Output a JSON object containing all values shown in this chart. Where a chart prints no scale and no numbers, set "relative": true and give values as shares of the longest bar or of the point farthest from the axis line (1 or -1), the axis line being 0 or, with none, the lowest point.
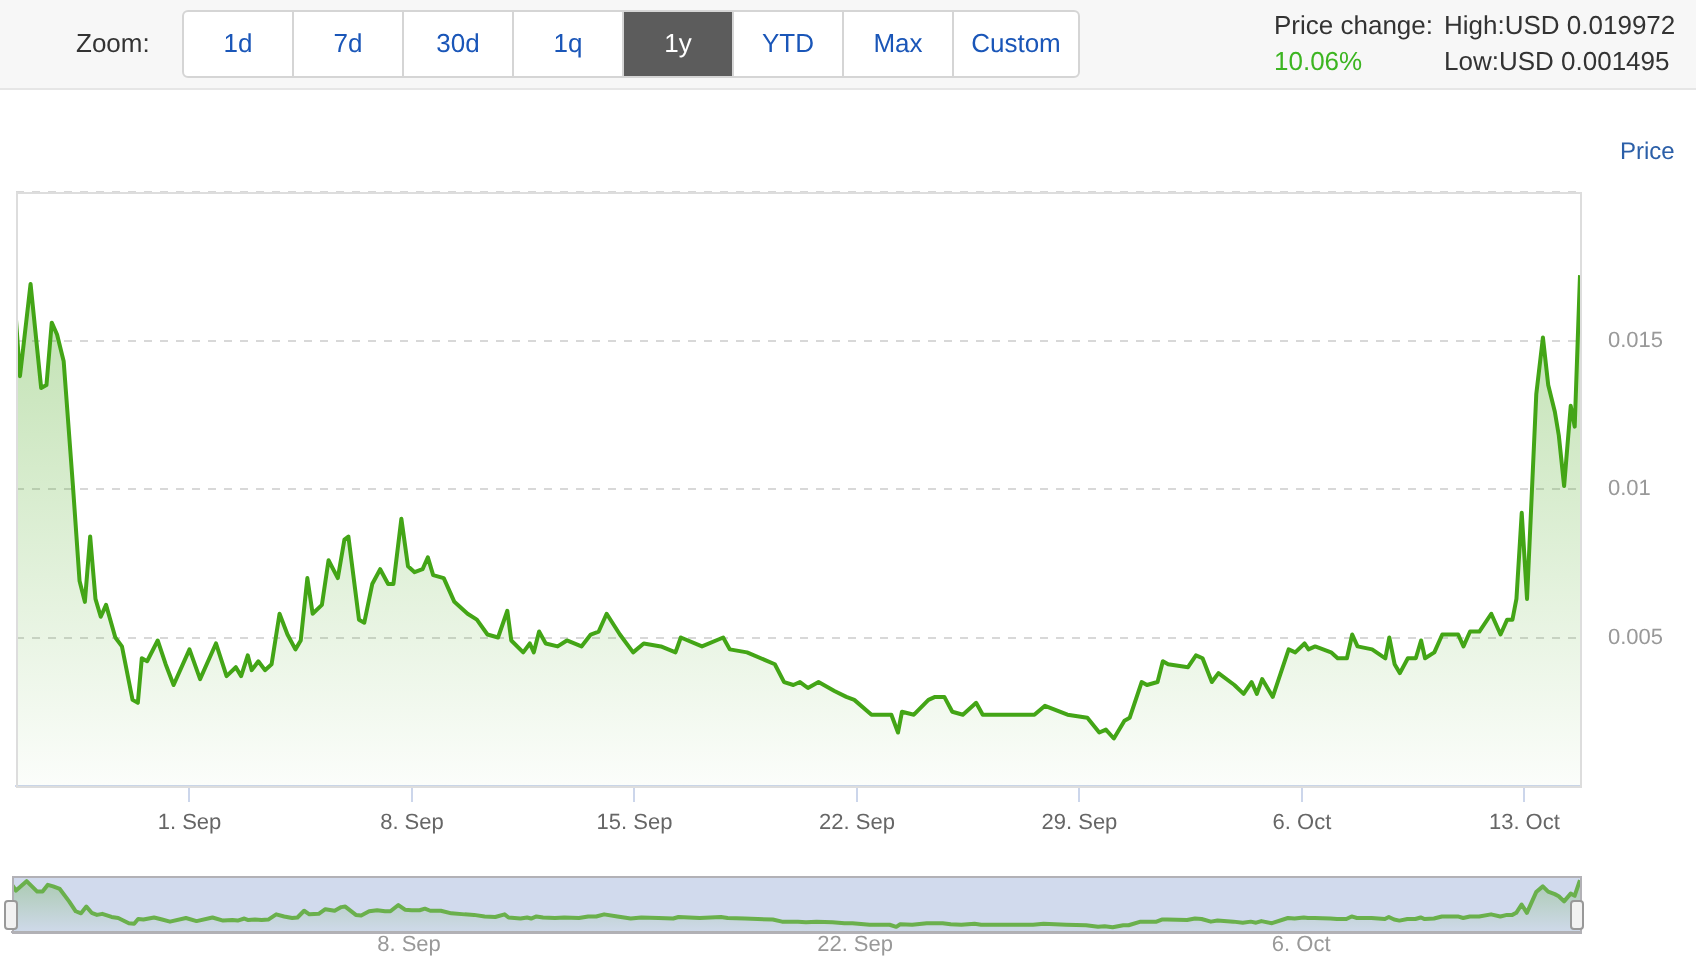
{
  "chart_data": [
    {
      "type": "area",
      "ylabel": "Price",
      "annotations": [
        "Zoom:",
        "1d",
        "7d",
        "30d",
        "1q",
        "1y",
        "YTD",
        "Max",
        "Custom",
        "Price change:",
        "10.06%",
        "High:USD 0.019972",
        "Low:USD 0.001495"
      ],
      "x": [
        "--08-26T13:00",
        "--08-26T16:00",
        "--08-27T00:00",
        "--08-27T08:00",
        "--08-27T12:00",
        "--08-27T16:00",
        "--08-27T20:00",
        "--08-28T01:00",
        "--08-28T08:00",
        "--08-28T13:00",
        "--08-28T17:00",
        "--08-28T21:00",
        "--08-29T01:00",
        "--08-29T05:00",
        "--08-29T09:00",
        "--08-29T16:00",
        "--08-29T21:00",
        "--08-30T05:00",
        "--08-30T09:00",
        "--08-30T12:00",
        "--08-30T16:00",
        "--08-31T00:00",
        "--08-31T06:00",
        "--08-31T12:00",
        "--09-01T00:00",
        "--09-01T08:00",
        "--09-01T20:00",
        "--09-02T04:00",
        "--09-02T11:00",
        "--09-02T15:00",
        "--09-02T20:00",
        "--09-02T23:00",
        "--09-03T04:00",
        "--09-03T09:00",
        "--09-03T14:00",
        "--09-03T20:00",
        "--09-04T02:00",
        "--09-04T08:00",
        "--09-04T12:00",
        "--09-04T17:00",
        "--09-04T21:00",
        "--09-05T04:00",
        "--09-05T09:00",
        "--09-05T16:00",
        "--09-05T21:00",
        "--09-06T00:00",
        "--09-06T08:00",
        "--09-06T12:00",
        "--09-06T18:00",
        "--09-07T00:00",
        "--09-07T06:00",
        "--09-07T10:00",
        "--09-07T16:00",
        "--09-07T21:00",
        "--09-08T02:00",
        "--09-08T08:00",
        "--09-08T12:00",
        "--09-08T16:00",
        "--09-09T00:00",
        "--09-09T08:00",
        "--09-09T18:00",
        "--09-10T01:00",
        "--09-10T09:00",
        "--09-10T17:00",
        "--09-11T00:00",
        "--09-11T03:00",
        "--09-11T12:00",
        "--09-11T17:00",
        "--09-11T20:00",
        "--09-12T00:00",
        "--09-12T05:00",
        "--09-12T14:00",
        "--09-12T21:00",
        "--09-13T08:00",
        "--09-13T15:00",
        "--09-13T21:00",
        "--09-14T03:00",
        "--09-14T13:00",
        "--09-14T23:00",
        "--09-15T07:00",
        "--09-15T20:00",
        "--09-16T07:00",
        "--09-16T11:00",
        "--09-17T03:00",
        "--09-17T19:00",
        "--09-18T00:00",
        "--09-18T13:00",
        "--09-19T10:00",
        "--09-19T17:00",
        "--09-20T00:00",
        "--09-20T05:00",
        "--09-20T11:00",
        "--09-20T19:00",
        "--09-21T07:00",
        "--09-21T16:00",
        "--09-21T22:00",
        "--09-22T11:00",
        "--09-23T02:00",
        "--09-23T07:00",
        "--09-23T10:00",
        "--09-23T19:00",
        "--09-24T06:00",
        "--09-24T11:00",
        "--09-24T18:00",
        "--09-25T00:00",
        "--09-25T08:00",
        "--09-25T18:00",
        "--09-25T23:00",
        "--09-26T13:00",
        "--09-27T04:00",
        "--09-27T14:00",
        "--09-27T22:00",
        "--09-28T15:00",
        "--09-29T06:00",
        "--09-29T15:00",
        "--09-29T20:00",
        "--09-30T02:00",
        "--09-30T10:00",
        "--09-30T14:00",
        "--09-30T23:00",
        "--10-01T03:00",
        "--10-01T11:00",
        "--10-01T15:00",
        "--10-01T19:00",
        "--10-02T10:00",
        "--10-02T16:00",
        "--10-02T21:00",
        "--10-03T04:00",
        "--10-03T09:00",
        "--10-03T21:00",
        "--10-04T04:00",
        "--10-04T10:00",
        "--10-04T14:00",
        "--10-04T18:00",
        "--10-05T02:00",
        "--10-05T14:00",
        "--10-05T19:00",
        "--10-06T02:00",
        "--10-06T05:00",
        "--10-06T10:00",
        "--10-06T22:00",
        "--10-07T03:00",
        "--10-07T10:00",
        "--10-07T14:00",
        "--10-07T18:00",
        "--10-08T05:00",
        "--10-08T15:00",
        "--10-08T18:00",
        "--10-08T22:00",
        "--10-09T02:00",
        "--10-09T08:00",
        "--10-09T14:00",
        "--10-09T18:00",
        "--10-09T21:00",
        "--10-10T04:00",
        "--10-10T10:00",
        "--10-10T17:00",
        "--10-10T22:00",
        "--10-11T02:00",
        "--10-11T07:00",
        "--10-11T14:00",
        "--10-11T23:00",
        "--10-12T06:00",
        "--10-12T11:00",
        "--10-12T15:00",
        "--10-12T18:00",
        "--10-12T22:00",
        "--10-13T02:00",
        "--10-13T09:00",
        "--10-13T14:00",
        "--10-13T18:00",
        "--10-13T23:00",
        "--10-14T02:00",
        "--10-14T06:00",
        "--10-14T11:00",
        "--10-14T14:00",
        "--10-14T18:00"
      ],
      "values": [
        0.0157,
        0.0138,
        0.0169,
        0.0134,
        0.0135,
        0.0156,
        0.0152,
        0.0143,
        0.0101,
        0.0069,
        0.0062,
        0.0084,
        0.0063,
        0.0057,
        0.0061,
        0.005,
        0.0047,
        0.0029,
        0.0028,
        0.0043,
        0.0042,
        0.0049,
        0.0041,
        0.0034,
        0.0046,
        0.0036,
        0.0048,
        0.0037,
        0.004,
        0.0037,
        0.0044,
        0.0039,
        0.0042,
        0.0039,
        0.0041,
        0.0058,
        0.0051,
        0.0046,
        0.0049,
        0.007,
        0.0058,
        0.0061,
        0.0076,
        0.007,
        0.0083,
        0.0084,
        0.0056,
        0.0055,
        0.0068,
        0.0073,
        0.0068,
        0.0068,
        0.009,
        0.0074,
        0.0072,
        0.0073,
        0.0077,
        0.0071,
        0.007,
        0.0062,
        0.0058,
        0.0056,
        0.0051,
        0.005,
        0.0059,
        0.0049,
        0.0045,
        0.0048,
        0.0045,
        0.0052,
        0.0048,
        0.0047,
        0.0049,
        0.0047,
        0.0051,
        0.0052,
        0.0058,
        0.0051,
        0.0045,
        0.0048,
        0.0047,
        0.0045,
        0.005,
        0.0047,
        0.005,
        0.0046,
        0.0045,
        0.0041,
        0.0035,
        0.0034,
        0.0035,
        0.0033,
        0.0035,
        0.0032,
        0.003,
        0.0029,
        0.0024,
        0.0024,
        0.0018,
        0.0025,
        0.0024,
        0.0029,
        0.003,
        0.003,
        0.0025,
        0.0024,
        0.0028,
        0.0024,
        0.0024,
        0.0024,
        0.0024,
        0.0027,
        0.0024,
        0.0023,
        0.0018,
        0.0019,
        0.0016,
        0.0022,
        0.0023,
        0.0035,
        0.0034,
        0.0035,
        0.0042,
        0.0041,
        0.004,
        0.0044,
        0.0043,
        0.0035,
        0.0038,
        0.0034,
        0.0031,
        0.0035,
        0.0031,
        0.0036,
        0.003,
        0.0046,
        0.0045,
        0.0048,
        0.0046,
        0.0047,
        0.0045,
        0.0043,
        0.0043,
        0.0051,
        0.0047,
        0.0046,
        0.0043,
        0.005,
        0.0041,
        0.0038,
        0.0043,
        0.0043,
        0.0049,
        0.0043,
        0.0045,
        0.0051,
        0.0051,
        0.0051,
        0.0047,
        0.0052,
        0.0052,
        0.0058,
        0.0051,
        0.0056,
        0.0056,
        0.0063,
        0.0092,
        0.0063,
        0.0132,
        0.0151,
        0.0135,
        0.0126,
        0.0118,
        0.0101,
        0.0128,
        0.0121,
        0.0172
      ],
      "color": "#43a516",
      "xlim": [
        "--08-26T13:00",
        "--10-14T18:00"
      ],
      "ylim": [
        0,
        0.02
      ],
      "xticks": [
        {
          "value": "--09-01",
          "label": "1. Sep"
        },
        {
          "value": "--09-08",
          "label": "8. Sep"
        },
        {
          "value": "--09-15",
          "label": "15. Sep"
        },
        {
          "value": "--09-22",
          "label": "22. Sep"
        },
        {
          "value": "--09-29",
          "label": "29. Sep"
        },
        {
          "value": "--10-06",
          "label": "6. Oct"
        },
        {
          "value": "--10-13",
          "label": "13. Oct"
        }
      ],
      "yticks": [
        {
          "value": 0,
          "label": null
        },
        0.005,
        0.01,
        0.015,
        {
          "value": 0.02,
          "label": null
        }
      ],
      "grid": "y"
    },
    {
      "type": "area",
      "tick_labels": "x",
      "x": [
        "--08-26T13:00",
        "--08-26T16:00",
        "--08-27T00:00",
        "--08-27T08:00",
        "--08-27T12:00",
        "--08-27T16:00",
        "--08-27T20:00",
        "--08-28T01:00",
        "--08-28T08:00",
        "--08-28T13:00",
        "--08-28T17:00",
        "--08-28T21:00",
        "--08-29T01:00",
        "--08-29T05:00",
        "--08-29T09:00",
        "--08-29T16:00",
        "--08-29T21:00",
        "--08-30T05:00",
        "--08-30T09:00",
        "--08-30T12:00",
        "--08-30T16:00",
        "--08-31T00:00",
        "--08-31T06:00",
        "--08-31T12:00",
        "--09-01T00:00",
        "--09-01T08:00",
        "--09-01T20:00",
        "--09-02T04:00",
        "--09-02T11:00",
        "--09-02T15:00",
        "--09-02T20:00",
        "--09-02T23:00",
        "--09-03T04:00",
        "--09-03T09:00",
        "--09-03T14:00",
        "--09-03T20:00",
        "--09-04T02:00",
        "--09-04T08:00",
        "--09-04T12:00",
        "--09-04T17:00",
        "--09-04T21:00",
        "--09-05T04:00",
        "--09-05T09:00",
        "--09-05T16:00",
        "--09-05T21:00",
        "--09-06T00:00",
        "--09-06T08:00",
        "--09-06T12:00",
        "--09-06T18:00",
        "--09-07T00:00",
        "--09-07T06:00",
        "--09-07T10:00",
        "--09-07T16:00",
        "--09-07T21:00",
        "--09-08T02:00",
        "--09-08T08:00",
        "--09-08T12:00",
        "--09-08T16:00",
        "--09-09T00:00",
        "--09-09T08:00",
        "--09-09T18:00",
        "--09-10T01:00",
        "--09-10T09:00",
        "--09-10T17:00",
        "--09-11T00:00",
        "--09-11T03:00",
        "--09-11T12:00",
        "--09-11T17:00",
        "--09-11T20:00",
        "--09-12T00:00",
        "--09-12T05:00",
        "--09-12T14:00",
        "--09-12T21:00",
        "--09-13T08:00",
        "--09-13T15:00",
        "--09-13T21:00",
        "--09-14T03:00",
        "--09-14T13:00",
        "--09-14T23:00",
        "--09-15T07:00",
        "--09-15T20:00",
        "--09-16T07:00",
        "--09-16T11:00",
        "--09-17T03:00",
        "--09-17T19:00",
        "--09-18T00:00",
        "--09-18T13:00",
        "--09-19T10:00",
        "--09-19T17:00",
        "--09-20T00:00",
        "--09-20T05:00",
        "--09-20T11:00",
        "--09-20T19:00",
        "--09-21T07:00",
        "--09-21T16:00",
        "--09-21T22:00",
        "--09-22T11:00",
        "--09-23T02:00",
        "--09-23T07:00",
        "--09-23T10:00",
        "--09-23T19:00",
        "--09-24T06:00",
        "--09-24T11:00",
        "--09-24T18:00",
        "--09-25T00:00",
        "--09-25T08:00",
        "--09-25T18:00",
        "--09-25T23:00",
        "--09-26T13:00",
        "--09-27T04:00",
        "--09-27T14:00",
        "--09-27T22:00",
        "--09-28T15:00",
        "--09-29T06:00",
        "--09-29T15:00",
        "--09-29T20:00",
        "--09-30T02:00",
        "--09-30T10:00",
        "--09-30T14:00",
        "--09-30T23:00",
        "--10-01T03:00",
        "--10-01T11:00",
        "--10-01T15:00",
        "--10-01T19:00",
        "--10-02T10:00",
        "--10-02T16:00",
        "--10-02T21:00",
        "--10-03T04:00",
        "--10-03T09:00",
        "--10-03T21:00",
        "--10-04T04:00",
        "--10-04T10:00",
        "--10-04T14:00",
        "--10-04T18:00",
        "--10-05T02:00",
        "--10-05T14:00",
        "--10-05T19:00",
        "--10-06T02:00",
        "--10-06T05:00",
        "--10-06T10:00",
        "--10-06T22:00",
        "--10-07T03:00",
        "--10-07T10:00",
        "--10-07T14:00",
        "--10-07T18:00",
        "--10-08T05:00",
        "--10-08T15:00",
        "--10-08T18:00",
        "--10-08T22:00",
        "--10-09T02:00",
        "--10-09T08:00",
        "--10-09T14:00",
        "--10-09T18:00",
        "--10-09T21:00",
        "--10-10T04:00",
        "--10-10T10:00",
        "--10-10T17:00",
        "--10-10T22:00",
        "--10-11T02:00",
        "--10-11T07:00",
        "--10-11T14:00",
        "--10-11T23:00",
        "--10-12T06:00",
        "--10-12T11:00",
        "--10-12T15:00",
        "--10-12T18:00",
        "--10-12T22:00",
        "--10-13T02:00",
        "--10-13T09:00",
        "--10-13T14:00",
        "--10-13T18:00",
        "--10-13T23:00",
        "--10-14T02:00",
        "--10-14T06:00",
        "--10-14T11:00",
        "--10-14T14:00",
        "--10-14T18:00"
      ],
      "values": [
        0.91,
        0.8,
        0.98,
        0.78,
        0.78,
        0.91,
        0.88,
        0.83,
        0.59,
        0.4,
        0.36,
        0.49,
        0.37,
        0.33,
        0.35,
        0.29,
        0.27,
        0.17,
        0.16,
        0.25,
        0.24,
        0.28,
        0.24,
        0.2,
        0.27,
        0.21,
        0.28,
        0.22,
        0.23,
        0.22,
        0.26,
        0.23,
        0.24,
        0.23,
        0.24,
        0.34,
        0.3,
        0.27,
        0.28,
        0.41,
        0.34,
        0.35,
        0.44,
        0.41,
        0.48,
        0.49,
        0.33,
        0.32,
        0.4,
        0.42,
        0.4,
        0.4,
        0.52,
        0.43,
        0.42,
        0.42,
        0.45,
        0.41,
        0.41,
        0.36,
        0.34,
        0.33,
        0.3,
        0.29,
        0.34,
        0.28,
        0.26,
        0.28,
        0.26,
        0.3,
        0.28,
        0.27,
        0.28,
        0.27,
        0.3,
        0.3,
        0.34,
        0.3,
        0.26,
        0.28,
        0.27,
        0.26,
        0.29,
        0.27,
        0.29,
        0.27,
        0.26,
        0.24,
        0.2,
        0.2,
        0.2,
        0.19,
        0.2,
        0.19,
        0.17,
        0.17,
        0.14,
        0.14,
        0.1,
        0.15,
        0.14,
        0.17,
        0.17,
        0.17,
        0.15,
        0.14,
        0.16,
        0.14,
        0.14,
        0.14,
        0.14,
        0.16,
        0.14,
        0.13,
        0.1,
        0.11,
        0.09,
        0.13,
        0.13,
        0.2,
        0.2,
        0.2,
        0.24,
        0.24,
        0.23,
        0.26,
        0.25,
        0.2,
        0.22,
        0.2,
        0.18,
        0.2,
        0.18,
        0.21,
        0.17,
        0.27,
        0.26,
        0.28,
        0.27,
        0.27,
        0.26,
        0.25,
        0.25,
        0.3,
        0.27,
        0.27,
        0.25,
        0.29,
        0.24,
        0.22,
        0.25,
        0.25,
        0.28,
        0.25,
        0.26,
        0.3,
        0.3,
        0.3,
        0.27,
        0.3,
        0.3,
        0.34,
        0.3,
        0.33,
        0.33,
        0.37,
        0.53,
        0.37,
        0.77,
        0.88,
        0.78,
        0.73,
        0.69,
        0.59,
        0.74,
        0.7,
        1
      ],
      "color": "#6ab04c",
      "relative": true,
      "xlim": [
        "--08-26T13:00",
        "--10-14T18:00"
      ],
      "xticks": [
        {
          "value": "--09-08",
          "label": "8. Sep"
        },
        {
          "value": "--09-22",
          "label": "22. Sep"
        },
        {
          "value": "--10-06",
          "label": "6. Oct"
        }
      ]
    }
  ]
}
